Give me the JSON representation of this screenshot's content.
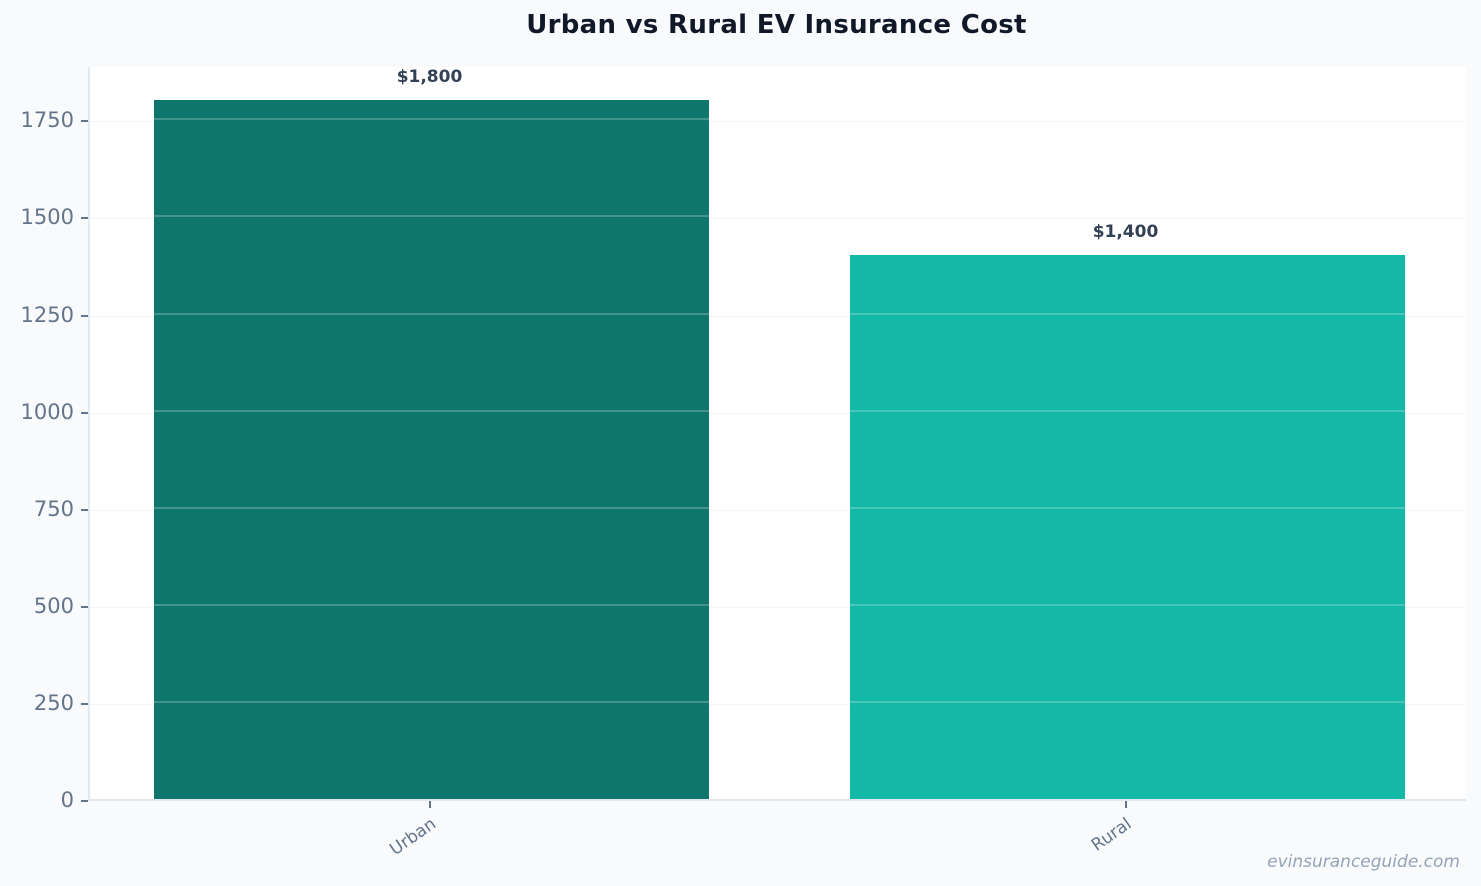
{
  "chart_data": {
    "type": "bar",
    "title": "Urban vs Rural EV Insurance Cost",
    "categories": [
      "Urban",
      "Rural"
    ],
    "values": [
      1800,
      1400
    ],
    "value_labels": [
      "$1,800",
      "$1,400"
    ],
    "colors": [
      "#0f766e",
      "#14b8a6"
    ],
    "xlabel": "",
    "ylabel": "",
    "ylim": [
      0,
      1890
    ],
    "yticks": [
      0,
      250,
      500,
      750,
      1000,
      1250,
      1500,
      1750
    ],
    "grid": true,
    "legend": null
  },
  "watermark": "evinsuranceguide.com"
}
